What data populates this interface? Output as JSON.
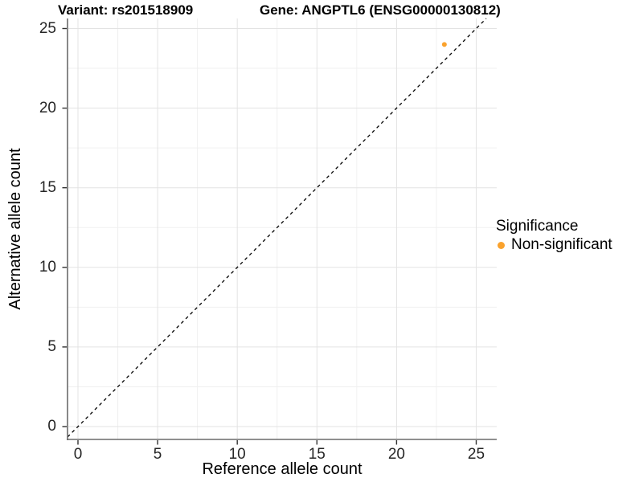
{
  "chart_data": {
    "type": "scatter",
    "variant_title": "Variant: rs201518909",
    "gene_title": "Gene: ANGPTL6 (ENSG00000130812)",
    "xlabel": "Reference allele count",
    "ylabel": "Alternative allele count",
    "xlim": [
      0,
      25
    ],
    "ylim": [
      0,
      25
    ],
    "x_ticks": [
      0,
      5,
      10,
      15,
      20,
      25
    ],
    "y_ticks": [
      0,
      5,
      10,
      15,
      20,
      25
    ],
    "x_minor_ticks": [
      2.5,
      7.5,
      12.5,
      17.5,
      22.5
    ],
    "y_minor_ticks": [
      2.5,
      7.5,
      12.5,
      17.5,
      22.5
    ],
    "grid": "major and minor gridlines, white panel",
    "identity_line": {
      "equation": "y = x",
      "style": "dashed",
      "color": "#000000"
    },
    "series": [
      {
        "name": "Non-significant",
        "color": "#FAA22D",
        "points": [
          [
            23,
            24
          ]
        ]
      }
    ],
    "legend": {
      "title": "Significance",
      "position": "right",
      "entries": [
        {
          "label": "Non-significant",
          "color": "#FAA22D"
        }
      ]
    }
  }
}
